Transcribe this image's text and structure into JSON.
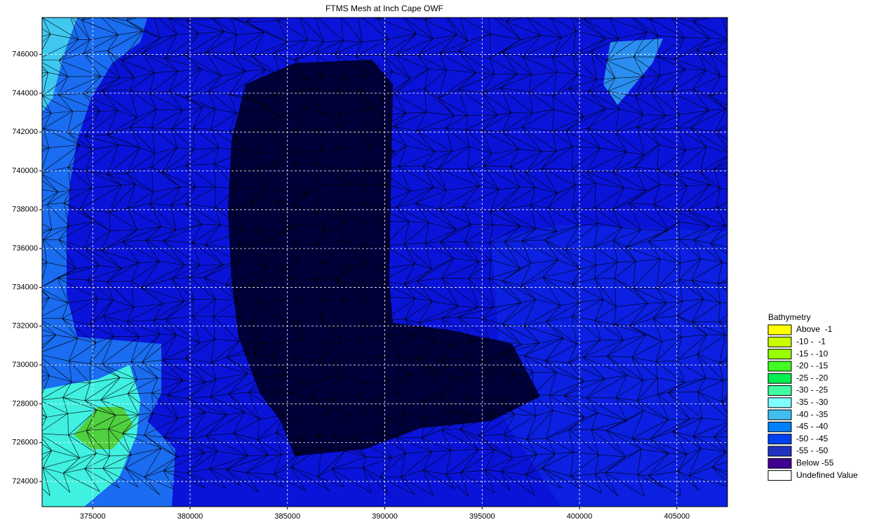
{
  "chart_data": {
    "type": "contour",
    "title": "FTMS Mesh at Inch Cape OWF",
    "xlim": [
      372400,
      407600
    ],
    "ylim": [
      722700,
      747900
    ],
    "xticks": [
      375000,
      380000,
      385000,
      390000,
      395000,
      400000,
      405000
    ],
    "yticks": [
      724000,
      726000,
      728000,
      730000,
      732000,
      734000,
      736000,
      738000,
      740000,
      742000,
      744000,
      746000
    ],
    "grid": true,
    "legend": {
      "title": "Bathymetry",
      "items": [
        {
          "label": "Above  -1",
          "color": "#ffff00"
        },
        {
          "label": "-10 -  -1",
          "color": "#c8ff00"
        },
        {
          "label": "-15 - -10",
          "color": "#96ff00"
        },
        {
          "label": "-20 - -15",
          "color": "#40ff20"
        },
        {
          "label": "-25 - -20",
          "color": "#00f050"
        },
        {
          "label": "-30 - -25",
          "color": "#40ffa0"
        },
        {
          "label": "-35 - -30",
          "color": "#80ffff"
        },
        {
          "label": "-40 - -35",
          "color": "#40c0f0"
        },
        {
          "label": "-45 - -40",
          "color": "#0080ff"
        },
        {
          "label": "-50 - -45",
          "color": "#0040f0"
        },
        {
          "label": "-55 - -50",
          "color": "#2030c0"
        },
        {
          "label": "Below -55",
          "color": "#400090"
        },
        {
          "label": "Undefined Value",
          "color": "#ffffff"
        }
      ]
    }
  }
}
